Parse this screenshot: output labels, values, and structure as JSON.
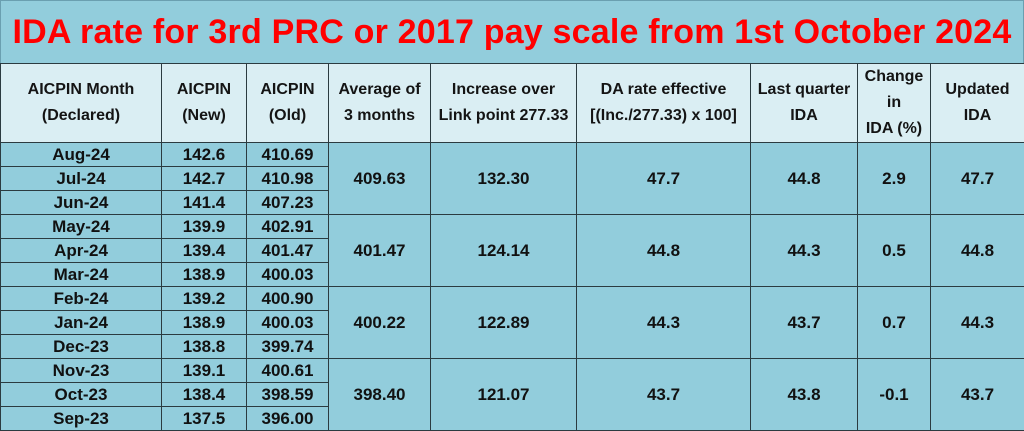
{
  "title": "IDA rate for 3rd PRC or 2017 pay scale from 1st October 2024",
  "colors": {
    "title": "#ff0000",
    "header_bg": "#daeef3",
    "body_bg": "#92cddc",
    "border": "#2b3b40"
  },
  "headers": [
    {
      "line1": "AICPIN Month",
      "line2": "(Declared)"
    },
    {
      "line1": "AICPIN",
      "line2": "(New)"
    },
    {
      "line1": "AICPIN",
      "line2": "(Old)"
    },
    {
      "line1": "Average of",
      "line2": "3 months"
    },
    {
      "line1": "Increase over",
      "line2": "Link point 277.33"
    },
    {
      "line1": "DA rate effective",
      "line2": "[(Inc./277.33) x 100]"
    },
    {
      "line1": "Last quarter",
      "line2": "IDA"
    },
    {
      "line1": "Change in",
      "line2": "IDA (%)"
    },
    {
      "line1": "Updated",
      "line2": "IDA"
    }
  ],
  "groups": [
    {
      "months": [
        {
          "month": "Aug-24",
          "new": "142.6",
          "old": "410.69"
        },
        {
          "month": "Jul-24",
          "new": "142.7",
          "old": "410.98"
        },
        {
          "month": "Jun-24",
          "new": "141.4",
          "old": "407.23"
        }
      ],
      "average": "409.63",
      "increase": "132.30",
      "da_rate": "47.7",
      "last_quarter_ida": "44.8",
      "change": "2.9",
      "updated_ida": "47.7"
    },
    {
      "months": [
        {
          "month": "May-24",
          "new": "139.9",
          "old": "402.91"
        },
        {
          "month": "Apr-24",
          "new": "139.4",
          "old": "401.47"
        },
        {
          "month": "Mar-24",
          "new": "138.9",
          "old": "400.03"
        }
      ],
      "average": "401.47",
      "increase": "124.14",
      "da_rate": "44.8",
      "last_quarter_ida": "44.3",
      "change": "0.5",
      "updated_ida": "44.8"
    },
    {
      "months": [
        {
          "month": "Feb-24",
          "new": "139.2",
          "old": "400.90"
        },
        {
          "month": "Jan-24",
          "new": "138.9",
          "old": "400.03"
        },
        {
          "month": "Dec-23",
          "new": "138.8",
          "old": "399.74"
        }
      ],
      "average": "400.22",
      "increase": "122.89",
      "da_rate": "44.3",
      "last_quarter_ida": "43.7",
      "change": "0.7",
      "updated_ida": "44.3"
    },
    {
      "months": [
        {
          "month": "Nov-23",
          "new": "139.1",
          "old": "400.61"
        },
        {
          "month": "Oct-23",
          "new": "138.4",
          "old": "398.59"
        },
        {
          "month": "Sep-23",
          "new": "137.5",
          "old": "396.00"
        }
      ],
      "average": "398.40",
      "increase": "121.07",
      "da_rate": "43.7",
      "last_quarter_ida": "43.8",
      "change": "-0.1",
      "updated_ida": "43.7"
    }
  ]
}
